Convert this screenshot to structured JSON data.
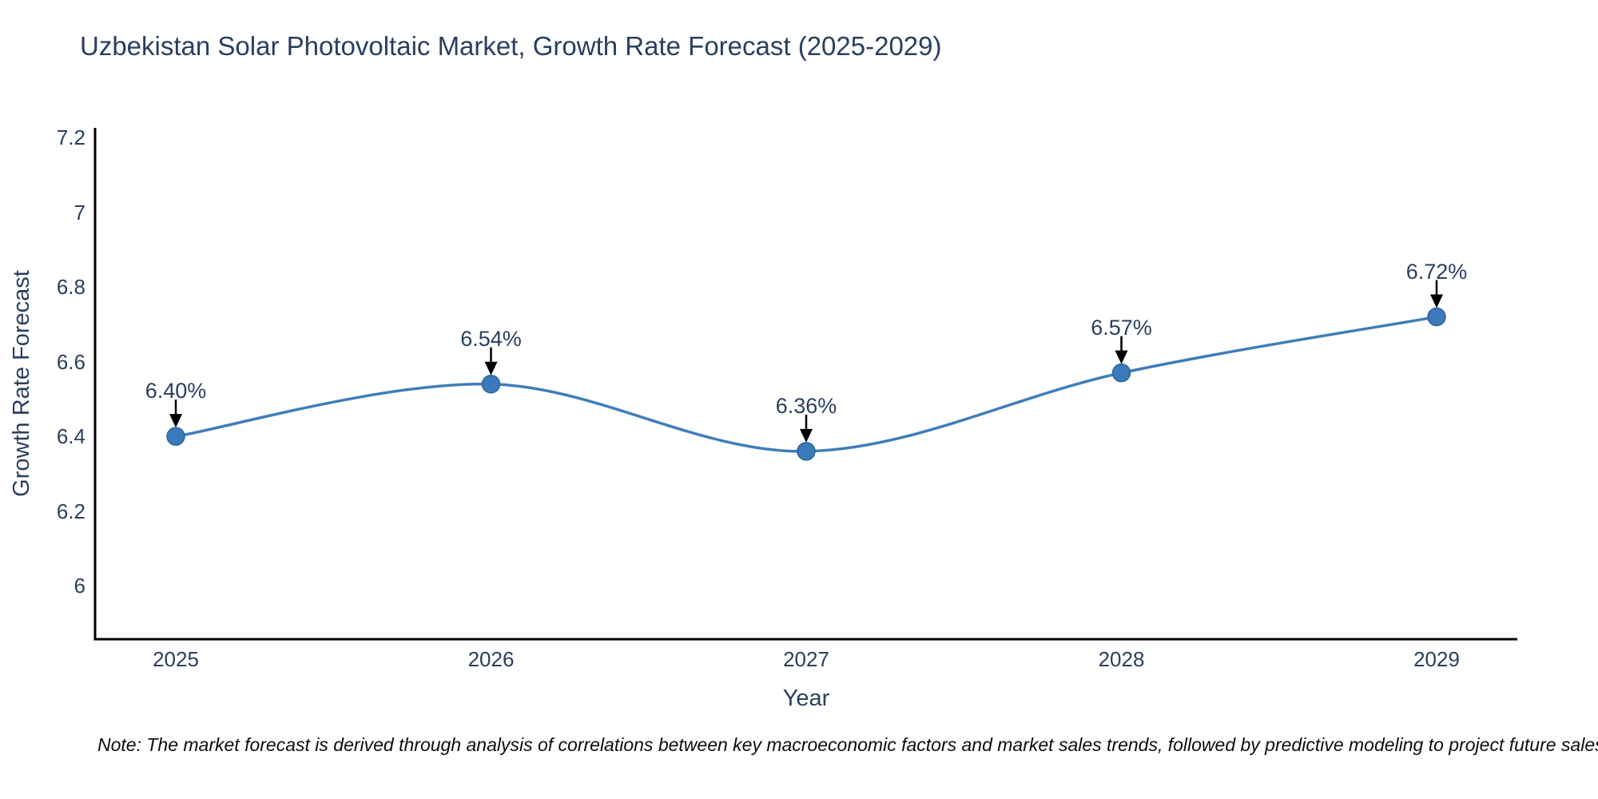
{
  "footnote": "Note: The market forecast is derived through analysis of correlations between key macroeconomic factors and market sales trends, followed by predictive modeling to project future sales",
  "chart_data": {
    "type": "line",
    "title": "Uzbekistan Solar Photovoltaic Market, Growth Rate Forecast (2025-2029)",
    "xlabel": "Year",
    "ylabel": "Growth Rate Forecast",
    "categories": [
      "2025",
      "2026",
      "2027",
      "2028",
      "2029"
    ],
    "series": [
      {
        "name": "Growth Rate Forecast",
        "values": [
          6.4,
          6.54,
          6.36,
          6.57,
          6.72
        ]
      }
    ],
    "point_labels": [
      "6.40%",
      "6.54%",
      "6.36%",
      "6.57%",
      "6.72%"
    ],
    "line_shape": "spline",
    "markers": true,
    "grid": false,
    "legend": false,
    "annotation_arrows": "down-to-point",
    "ylim": [
      5.857,
      7.226
    ],
    "yticks": [
      6,
      6.2,
      6.4,
      6.6,
      6.8,
      7,
      7.2
    ],
    "ytick_labels": [
      "6",
      "6.2",
      "6.4",
      "6.6",
      "6.8",
      "7",
      "7.2"
    ],
    "colors": {
      "line": "#3f7db8",
      "marker": "#3a7abc",
      "marker_edge": "#2d6497",
      "axis": "#000000",
      "text": "#2a3f5f",
      "note": "#0d0d0d",
      "background": "#ffffff"
    }
  }
}
